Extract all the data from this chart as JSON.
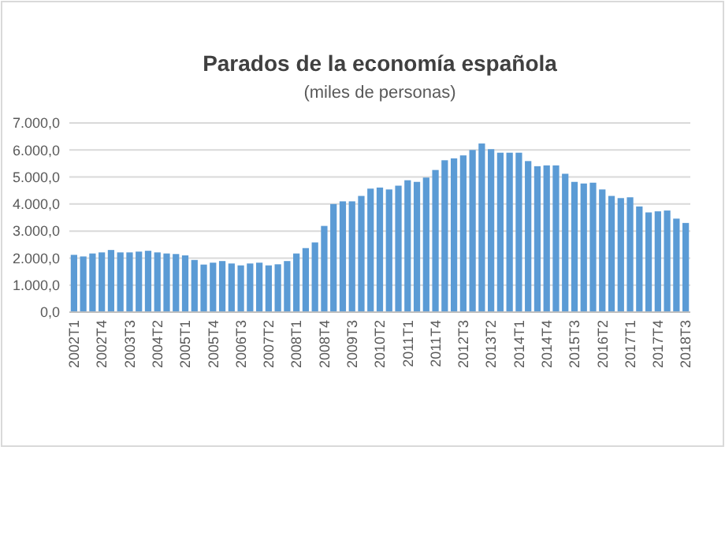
{
  "chart_data": {
    "type": "bar",
    "title": "Parados de la economía española",
    "subtitle": "(miles de personas)",
    "categories": [
      "2002T1",
      null,
      null,
      "2002T4",
      null,
      null,
      "2003T3",
      null,
      null,
      "2004T2",
      null,
      null,
      "2005T1",
      null,
      null,
      "2005T4",
      null,
      null,
      "2006T3",
      null,
      null,
      "2007T2",
      null,
      null,
      "2008T1",
      null,
      null,
      "2008T4",
      null,
      null,
      "2009T3",
      null,
      null,
      "2010T2",
      null,
      null,
      "2011T1",
      null,
      null,
      "2011T4",
      null,
      null,
      "2012T3",
      null,
      null,
      "2013T2",
      null,
      null,
      "2014T1",
      null,
      null,
      "2014T4",
      null,
      null,
      "2015T3",
      null,
      null,
      "2016T2",
      null,
      null,
      "2017T1",
      null,
      null,
      "2017T4",
      null,
      null,
      "2018T3"
    ],
    "values": [
      2120,
      2060,
      2170,
      2210,
      2300,
      2210,
      2210,
      2240,
      2270,
      2210,
      2170,
      2150,
      2100,
      1930,
      1760,
      1830,
      1890,
      1800,
      1730,
      1800,
      1830,
      1730,
      1770,
      1890,
      2170,
      2370,
      2580,
      3190,
      4000,
      4100,
      4100,
      4300,
      4570,
      4610,
      4540,
      4680,
      4880,
      4820,
      4980,
      5260,
      5620,
      5690,
      5800,
      6000,
      6240,
      6030,
      5900,
      5900,
      5900,
      5590,
      5400,
      5430,
      5430,
      5120,
      4820,
      4760,
      4790,
      4540,
      4300,
      4220,
      4250,
      3910,
      3690,
      3730,
      3760,
      3460,
      3300
    ],
    "color": "#5b9bd5",
    "ylim": [
      0,
      7000
    ],
    "yticks": [
      {
        "value": 0,
        "label": "0,0"
      },
      {
        "value": 1000,
        "label": "1.000,0"
      },
      {
        "value": 2000,
        "label": "2.000,0"
      },
      {
        "value": 3000,
        "label": "3.000,0"
      },
      {
        "value": 4000,
        "label": "4.000,0"
      },
      {
        "value": 5000,
        "label": "5.000,0"
      },
      {
        "value": 6000,
        "label": "6.000,0"
      },
      {
        "value": 7000,
        "label": "7.000,0"
      }
    ],
    "grid": true
  }
}
